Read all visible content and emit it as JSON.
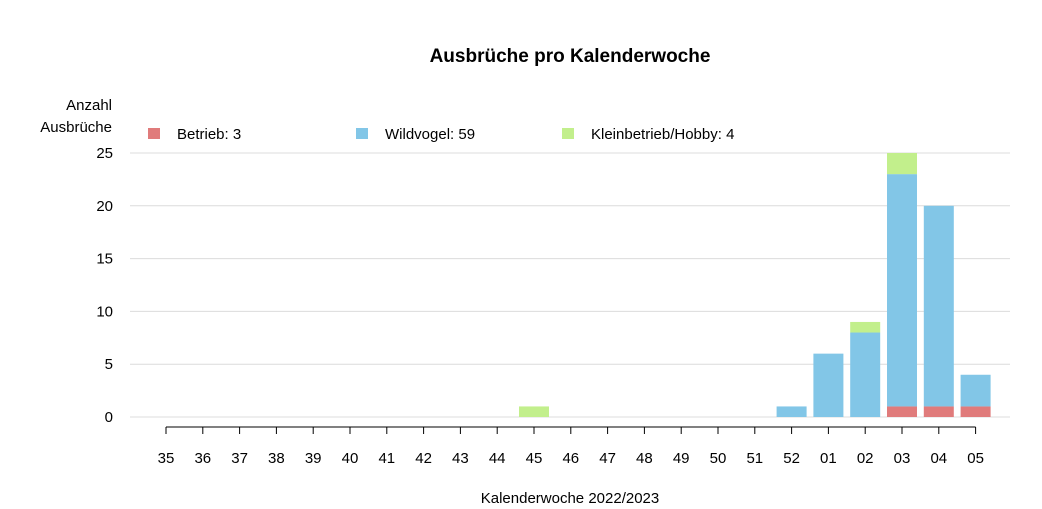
{
  "chart_data": {
    "type": "bar",
    "stacked": true,
    "title": "Ausbrüche pro Kalenderwoche",
    "ylabel": [
      "Anzahl",
      "Ausbrüche"
    ],
    "xlabel": "Kalenderwoche 2022/2023",
    "ylim": [
      0,
      25
    ],
    "yticks": [
      0,
      5,
      10,
      15,
      20,
      25
    ],
    "grid": true,
    "legend_position": "top",
    "categories": [
      "35",
      "36",
      "37",
      "38",
      "39",
      "40",
      "41",
      "42",
      "43",
      "44",
      "45",
      "46",
      "47",
      "48",
      "49",
      "50",
      "51",
      "52",
      "01",
      "02",
      "03",
      "04",
      "05"
    ],
    "series": [
      {
        "name": "Betrieb",
        "legend_label": "Betrieb: 3",
        "color": "#e07b7b",
        "values": [
          0,
          0,
          0,
          0,
          0,
          0,
          0,
          0,
          0,
          0,
          0,
          0,
          0,
          0,
          0,
          0,
          0,
          0,
          0,
          0,
          1,
          1,
          1
        ]
      },
      {
        "name": "Wildvogel",
        "legend_label": "Wildvogel: 59",
        "color": "#82c6e7",
        "values": [
          0,
          0,
          0,
          0,
          0,
          0,
          0,
          0,
          0,
          0,
          0,
          0,
          0,
          0,
          0,
          0,
          0,
          1,
          6,
          8,
          22,
          19,
          3
        ]
      },
      {
        "name": "Kleinbetrieb/Hobby",
        "legend_label": "Kleinbetrieb/Hobby: 4",
        "color": "#c2ef8c",
        "values": [
          0,
          0,
          0,
          0,
          0,
          0,
          0,
          0,
          0,
          0,
          1,
          0,
          0,
          0,
          0,
          0,
          0,
          0,
          0,
          1,
          2,
          0,
          0
        ]
      }
    ]
  }
}
